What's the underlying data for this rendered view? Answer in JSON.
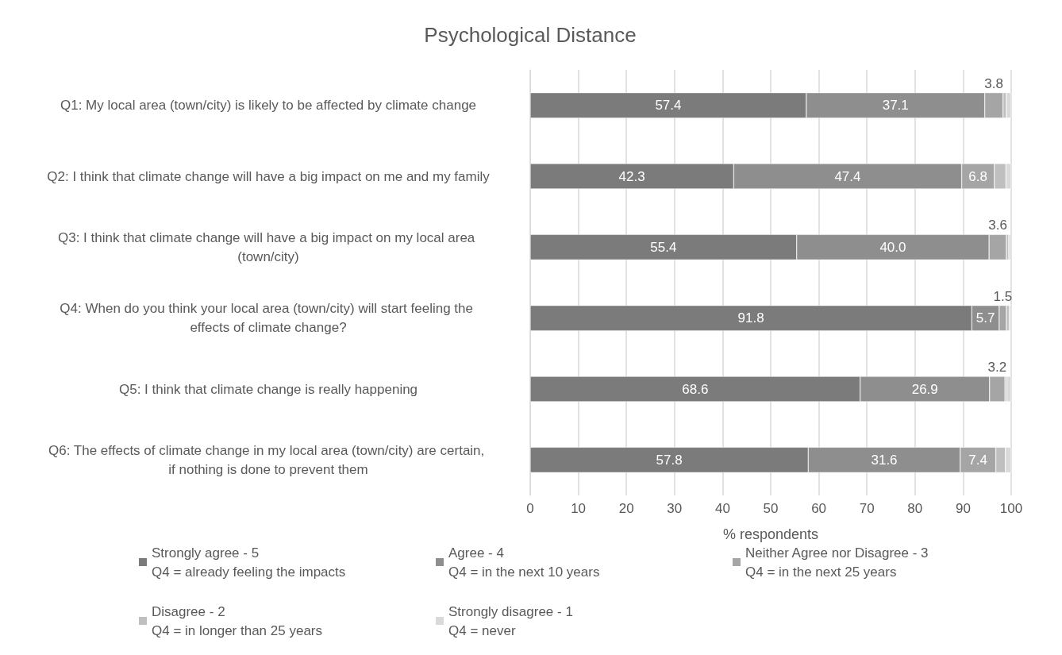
{
  "chart_data": {
    "type": "bar",
    "orientation": "horizontal",
    "stacked": true,
    "title": "Psychological Distance",
    "xlabel": "% respondents",
    "categories": [
      "Q1: My local area (town/city) is likely to be affected by climate change",
      "Q2: I think that climate change will have a big impact on me and my family",
      "Q3: I think that climate change will have a big impact on my local area (town/city)",
      "Q4: When do you think your local area (town/city) will start feeling the effects of climate change?",
      "Q5: I think that climate change is really happening",
      "Q6: The effects of climate change in my local area (town/city) are certain, if nothing is done to prevent them"
    ],
    "series": [
      {
        "name": "Strongly agree - 5\nQ4 = already feeling the impacts",
        "color": "#7b7b7b",
        "values": [
          57.4,
          42.3,
          55.4,
          91.8,
          68.6,
          57.8
        ],
        "value_labels": [
          "57.4",
          "42.3",
          "55.4",
          "91.8",
          "68.6",
          "57.8"
        ]
      },
      {
        "name": "Agree - 4\nQ4 = in the next 10 years",
        "color": "#8e8e8e",
        "values": [
          37.1,
          47.4,
          40.0,
          5.7,
          26.9,
          31.6
        ],
        "value_labels": [
          "37.1",
          "47.4",
          "40.0",
          "5.7",
          "26.9",
          "31.6"
        ]
      },
      {
        "name": "Neither Agree nor Disagree - 3\nQ4 = in the next 25 years",
        "color": "#a5a5a5",
        "values": [
          3.8,
          6.8,
          3.6,
          1.5,
          3.2,
          7.4
        ],
        "value_labels": [
          "3.8",
          "6.8",
          "3.6",
          "1.5",
          "3.2",
          "7.4"
        ]
      },
      {
        "name": "Disagree - 2\nQ4 = in longer than 25 years",
        "color": "#bfbfbf",
        "values": [
          0.7,
          2.4,
          0.5,
          0.6,
          0.4,
          2.0
        ]
      },
      {
        "name": "Strongly disagree - 1\nQ4 = never",
        "color": "#d9d9d9",
        "values": [
          1.0,
          1.1,
          0.5,
          0.4,
          0.9,
          1.2
        ]
      }
    ],
    "xlim": [
      0,
      100
    ],
    "xticks": [
      0,
      10,
      20,
      30,
      40,
      50,
      60,
      70,
      80,
      90,
      100
    ],
    "grid": "x",
    "legend": "bottom"
  }
}
